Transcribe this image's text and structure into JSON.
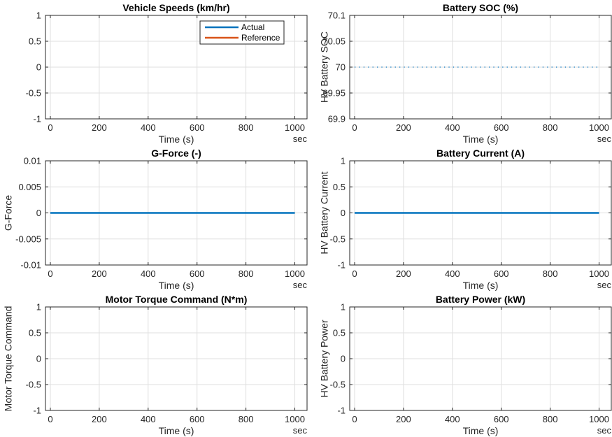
{
  "figure": {
    "x_unit_label": "sec"
  },
  "colors": {
    "actual": "#0072BD",
    "reference": "#D95319",
    "grid": "#DFDFDF",
    "axes": "#262626"
  },
  "chart_data": [
    {
      "type": "line",
      "title": "Vehicle Speeds (km/hr)",
      "xlabel": "Time (s)",
      "ylabel": "",
      "xlim": [
        -20,
        1050
      ],
      "ylim": [
        -1,
        1
      ],
      "xticks": [
        0,
        200,
        400,
        600,
        800,
        1000
      ],
      "xtick_labels": [
        "0",
        "200",
        "400",
        "600",
        "800",
        "1000"
      ],
      "yticks": [
        -1,
        -0.5,
        0,
        0.5,
        1
      ],
      "ytick_labels": [
        "-1",
        "-0.5",
        "0",
        "0.5",
        "1"
      ],
      "grid": true,
      "legend": {
        "position": "top-right",
        "entries": [
          "Actual",
          "Reference"
        ]
      },
      "series": [
        {
          "name": "Actual",
          "color": "#0072BD",
          "style": "solid",
          "x": [],
          "y": []
        },
        {
          "name": "Reference",
          "color": "#D95319",
          "style": "solid",
          "x": [],
          "y": []
        }
      ]
    },
    {
      "type": "line",
      "title": "Battery SOC (%)",
      "xlabel": "Time (s)",
      "ylabel": "HV Battery SOC",
      "xlim": [
        -20,
        1050
      ],
      "ylim": [
        69.9,
        70.1
      ],
      "xticks": [
        0,
        200,
        400,
        600,
        800,
        1000
      ],
      "xtick_labels": [
        "0",
        "200",
        "400",
        "600",
        "800",
        "1000"
      ],
      "yticks": [
        69.9,
        69.95,
        70,
        70.05,
        70.1
      ],
      "ytick_labels": [
        "69.9",
        "69.95",
        "70",
        "70.05",
        "70.1"
      ],
      "grid": true,
      "series": [
        {
          "color": "#0072BD",
          "style": "dotted",
          "x": [
            0,
            1000
          ],
          "y": [
            70,
            70
          ]
        }
      ]
    },
    {
      "type": "line",
      "title": "G-Force (-)",
      "xlabel": "Time (s)",
      "ylabel": "G-Force",
      "xlim": [
        -20,
        1050
      ],
      "ylim": [
        -0.01,
        0.01
      ],
      "xticks": [
        0,
        200,
        400,
        600,
        800,
        1000
      ],
      "xtick_labels": [
        "0",
        "200",
        "400",
        "600",
        "800",
        "1000"
      ],
      "yticks": [
        -0.01,
        -0.005,
        0,
        0.005,
        0.01
      ],
      "ytick_labels": [
        "-0.01",
        "-0.005",
        "0",
        "0.005",
        "0.01"
      ],
      "grid": true,
      "series": [
        {
          "color": "#0072BD",
          "style": "solid",
          "x": [
            0,
            1000
          ],
          "y": [
            0,
            0
          ]
        }
      ]
    },
    {
      "type": "line",
      "title": "Battery Current (A)",
      "xlabel": "Time (s)",
      "ylabel": "HV Battery Current",
      "xlim": [
        -20,
        1050
      ],
      "ylim": [
        -1,
        1
      ],
      "xticks": [
        0,
        200,
        400,
        600,
        800,
        1000
      ],
      "xtick_labels": [
        "0",
        "200",
        "400",
        "600",
        "800",
        "1000"
      ],
      "yticks": [
        -1,
        -0.5,
        0,
        0.5,
        1
      ],
      "ytick_labels": [
        "-1",
        "-0.5",
        "0",
        "0.5",
        "1"
      ],
      "grid": true,
      "series": [
        {
          "color": "#0072BD",
          "style": "solid",
          "x": [
            0,
            1000
          ],
          "y": [
            0,
            0
          ]
        }
      ]
    },
    {
      "type": "line",
      "title": "Motor Torque Command (N*m)",
      "xlabel": "Time (s)",
      "ylabel": "Motor Torque Command",
      "xlim": [
        -20,
        1050
      ],
      "ylim": [
        -1,
        1
      ],
      "xticks": [
        0,
        200,
        400,
        600,
        800,
        1000
      ],
      "xtick_labels": [
        "0",
        "200",
        "400",
        "600",
        "800",
        "1000"
      ],
      "yticks": [
        -1,
        -0.5,
        0,
        0.5,
        1
      ],
      "ytick_labels": [
        "-1",
        "-0.5",
        "0",
        "0.5",
        "1"
      ],
      "grid": true,
      "series": []
    },
    {
      "type": "line",
      "title": "Battery Power (kW)",
      "xlabel": "Time (s)",
      "ylabel": "HV Battery Power",
      "xlim": [
        -20,
        1050
      ],
      "ylim": [
        -1,
        1
      ],
      "xticks": [
        0,
        200,
        400,
        600,
        800,
        1000
      ],
      "xtick_labels": [
        "0",
        "200",
        "400",
        "600",
        "800",
        "1000"
      ],
      "yticks": [
        -1,
        -0.5,
        0,
        0.5,
        1
      ],
      "ytick_labels": [
        "-1",
        "-0.5",
        "0",
        "0.5",
        "1"
      ],
      "grid": true,
      "series": []
    }
  ]
}
